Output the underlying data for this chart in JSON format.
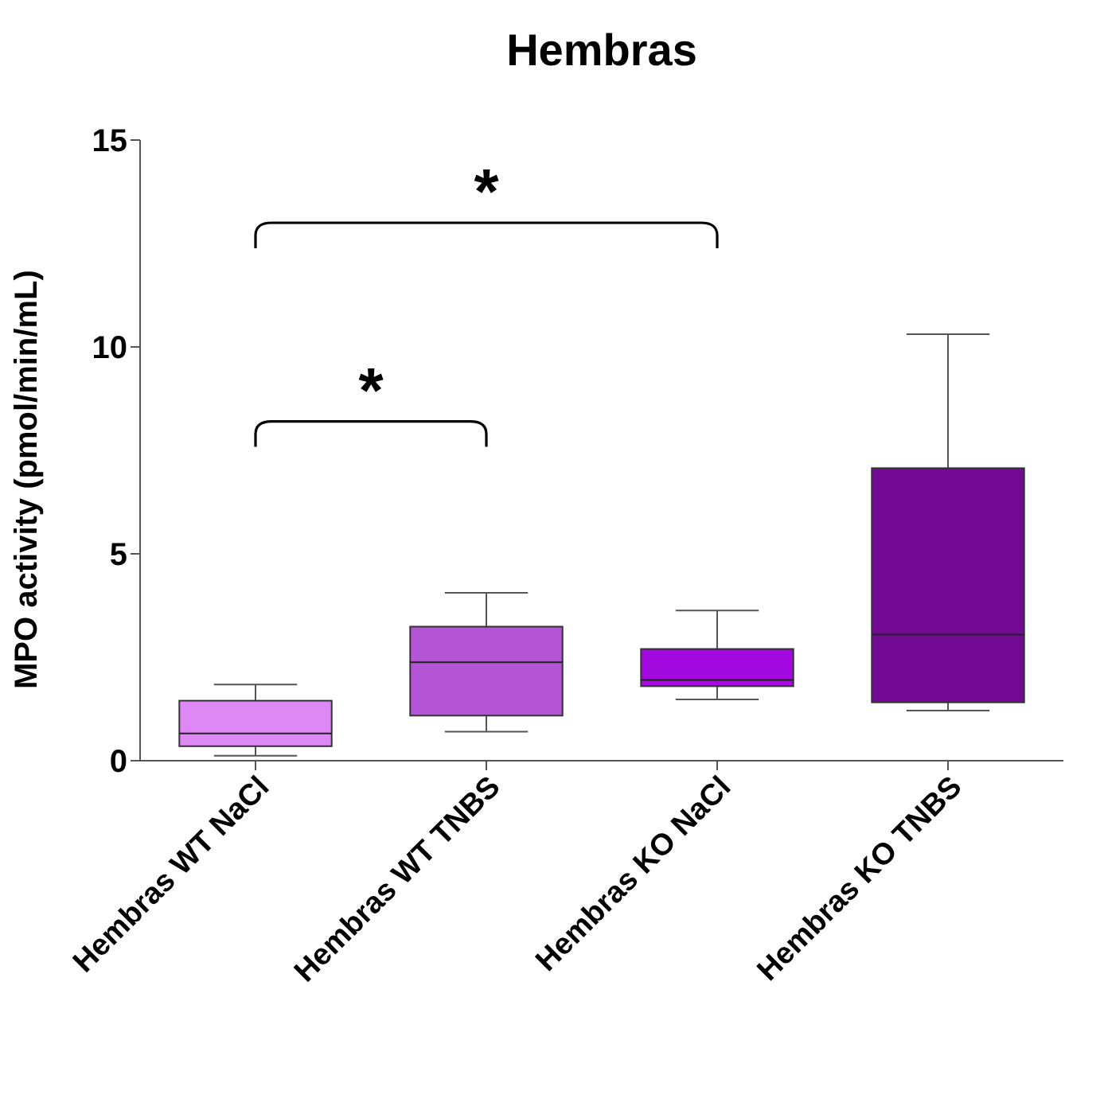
{
  "chart_data": {
    "type": "box",
    "title": "Hembras",
    "ylabel": "MPO activity (pmol/min/mL)",
    "categories": [
      "Hembras WT NaCl",
      "Hembras WT TNBS",
      "Hembras KO NaCl",
      "Hembras KO TNBS"
    ],
    "colors": [
      "#dd88f5",
      "#b455d6",
      "#a30ae0",
      "#730a94"
    ],
    "boxes": [
      {
        "low": 0.12,
        "q1": 0.35,
        "median": 0.66,
        "q3": 1.45,
        "high": 1.84
      },
      {
        "low": 0.7,
        "q1": 1.09,
        "median": 2.38,
        "q3": 3.24,
        "high": 4.06
      },
      {
        "low": 1.48,
        "q1": 1.8,
        "median": 1.95,
        "q3": 2.7,
        "high": 3.63
      },
      {
        "low": 1.21,
        "q1": 1.41,
        "median": 3.05,
        "q3": 7.07,
        "high": 10.31
      }
    ],
    "ylim": [
      0,
      15
    ],
    "yticks": [
      0,
      5,
      10,
      15
    ],
    "annotations": [
      "*",
      "*"
    ]
  }
}
